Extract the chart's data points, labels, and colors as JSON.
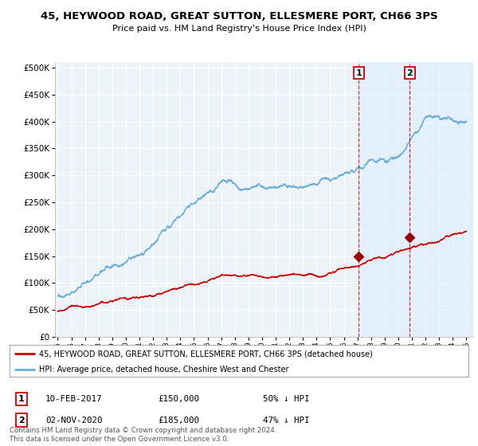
{
  "title": "45, HEYWOOD ROAD, GREAT SUTTON, ELLESMERE PORT, CH66 3PS",
  "subtitle": "Price paid vs. HM Land Registry's House Price Index (HPI)",
  "ytick_values": [
    0,
    50000,
    100000,
    150000,
    200000,
    250000,
    300000,
    350000,
    400000,
    450000,
    500000
  ],
  "x_start_year": 1995,
  "x_end_year": 2025,
  "background_color": "#ffffff",
  "plot_bg_color": "#eef3f8",
  "grid_color": "#ffffff",
  "hpi_line_color": "#6baed6",
  "hpi_fill_color": "#d6e8f5",
  "price_line_color": "#cc0000",
  "legend_label_price": "45, HEYWOOD ROAD, GREAT SUTTON, ELLESMERE PORT, CH66 3PS (detached house)",
  "legend_label_hpi": "HPI: Average price, detached house, Cheshire West and Chester",
  "sale1_date": "10-FEB-2017",
  "sale1_price": "£150,000",
  "sale1_pct": "50% ↓ HPI",
  "sale1_year": 2017.1,
  "sale1_value": 150000,
  "sale2_date": "02-NOV-2020",
  "sale2_price": "£185,000",
  "sale2_pct": "47% ↓ HPI",
  "sale2_year": 2020.85,
  "sale2_value": 185000,
  "footer": "Contains HM Land Registry data © Crown copyright and database right 2024.\nThis data is licensed under the Open Government Licence v3.0.",
  "marker_color": "#990000",
  "vline_color": "#cc0000",
  "shade_color": "#ddeeff"
}
